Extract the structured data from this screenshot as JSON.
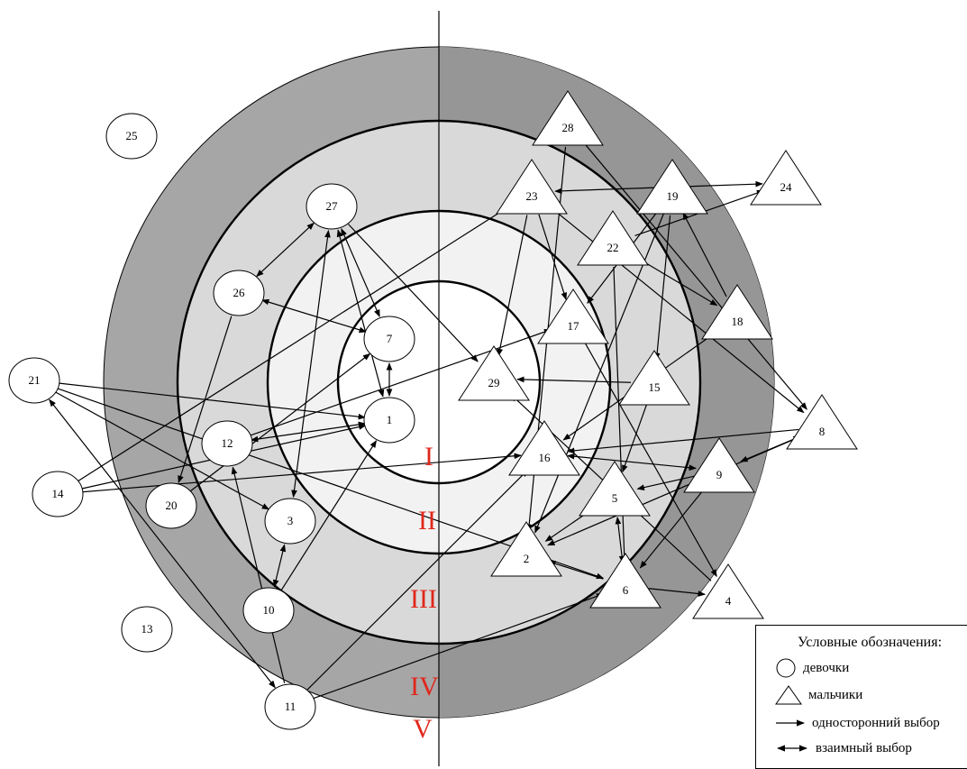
{
  "zones": [
    {
      "id": "I",
      "label": "I"
    },
    {
      "id": "II",
      "label": "II"
    },
    {
      "id": "III",
      "label": "III"
    },
    {
      "id": "IV",
      "label": "IV"
    },
    {
      "id": "V",
      "label": "V"
    }
  ],
  "colors": {
    "zone_outer": "#a6a6a6",
    "zone_outer_right": "#969696",
    "zone_middle": "#d9d9d9",
    "zone_inner": "#f2f2f2",
    "zone_center": "#ffffff",
    "zone_label": "#e0271c",
    "stroke": "#000000"
  },
  "nodes": [
    {
      "id": "1",
      "label": "1",
      "shape": "circle"
    },
    {
      "id": "2",
      "label": "2",
      "shape": "triangle"
    },
    {
      "id": "3",
      "label": "3",
      "shape": "circle"
    },
    {
      "id": "4",
      "label": "4",
      "shape": "triangle"
    },
    {
      "id": "5",
      "label": "5",
      "shape": "triangle"
    },
    {
      "id": "6",
      "label": "6",
      "shape": "triangle"
    },
    {
      "id": "7",
      "label": "7",
      "shape": "circle"
    },
    {
      "id": "8",
      "label": "8",
      "shape": "triangle"
    },
    {
      "id": "9",
      "label": "9",
      "shape": "triangle"
    },
    {
      "id": "10",
      "label": "10",
      "shape": "circle"
    },
    {
      "id": "11",
      "label": "11",
      "shape": "circle"
    },
    {
      "id": "12",
      "label": "12",
      "shape": "circle"
    },
    {
      "id": "13",
      "label": "13",
      "shape": "circle"
    },
    {
      "id": "14",
      "label": "14",
      "shape": "circle"
    },
    {
      "id": "15",
      "label": "15",
      "shape": "triangle"
    },
    {
      "id": "16",
      "label": "16",
      "shape": "triangle"
    },
    {
      "id": "17",
      "label": "17",
      "shape": "triangle"
    },
    {
      "id": "18",
      "label": "18",
      "shape": "triangle"
    },
    {
      "id": "19",
      "label": "19",
      "shape": "triangle"
    },
    {
      "id": "20",
      "label": "20",
      "shape": "circle"
    },
    {
      "id": "21",
      "label": "21",
      "shape": "circle"
    },
    {
      "id": "22",
      "label": "22",
      "shape": "triangle"
    },
    {
      "id": "23",
      "label": "23",
      "shape": "triangle"
    },
    {
      "id": "24",
      "label": "24",
      "shape": "triangle"
    },
    {
      "id": "25",
      "label": "25",
      "shape": "circle"
    },
    {
      "id": "26",
      "label": "26",
      "shape": "circle"
    },
    {
      "id": "27",
      "label": "27",
      "shape": "circle"
    },
    {
      "id": "28",
      "label": "28",
      "shape": "triangle"
    },
    {
      "id": "29",
      "label": "29",
      "shape": "triangle"
    }
  ],
  "edges": [
    {
      "from": "27",
      "to": "7",
      "type": "mutual"
    },
    {
      "from": "27",
      "to": "26",
      "type": "mutual"
    },
    {
      "from": "26",
      "to": "7",
      "type": "mutual"
    },
    {
      "from": "27",
      "to": "1",
      "type": "mutual"
    },
    {
      "from": "7",
      "to": "1",
      "type": "mutual"
    },
    {
      "from": "27",
      "to": "3",
      "type": "mutual"
    },
    {
      "from": "27",
      "to": "29",
      "type": "one-way"
    },
    {
      "from": "26",
      "to": "20",
      "type": "one-way"
    },
    {
      "from": "21",
      "to": "1",
      "type": "one-way"
    },
    {
      "from": "21",
      "to": "3",
      "type": "one-way"
    },
    {
      "from": "21",
      "to": "11",
      "type": "mutual"
    },
    {
      "from": "21",
      "to": "6",
      "type": "one-way"
    },
    {
      "from": "14",
      "to": "1",
      "type": "one-way"
    },
    {
      "from": "14",
      "to": "16",
      "type": "one-way"
    },
    {
      "from": "14",
      "to": "23",
      "type": "one-way"
    },
    {
      "from": "10",
      "to": "3",
      "type": "mutual"
    },
    {
      "from": "10",
      "to": "1",
      "type": "one-way"
    },
    {
      "from": "11",
      "to": "12",
      "type": "one-way"
    },
    {
      "from": "11",
      "to": "6",
      "type": "one-way"
    },
    {
      "from": "11",
      "to": "16",
      "type": "one-way"
    },
    {
      "from": "20",
      "to": "7",
      "type": "one-way"
    },
    {
      "from": "12",
      "to": "17",
      "type": "one-way"
    },
    {
      "from": "12",
      "to": "1",
      "type": "mutual"
    },
    {
      "from": "23",
      "to": "24",
      "type": "mutual"
    },
    {
      "from": "23",
      "to": "29",
      "type": "one-way"
    },
    {
      "from": "23",
      "to": "17",
      "type": "one-way"
    },
    {
      "from": "23",
      "to": "8",
      "type": "one-way"
    },
    {
      "from": "28",
      "to": "2",
      "type": "one-way"
    },
    {
      "from": "28",
      "to": "8",
      "type": "one-way"
    },
    {
      "from": "22",
      "to": "24",
      "type": "one-way"
    },
    {
      "from": "22",
      "to": "18",
      "type": "mutual"
    },
    {
      "from": "22",
      "to": "6",
      "type": "one-way"
    },
    {
      "from": "19",
      "to": "15",
      "type": "one-way"
    },
    {
      "from": "19",
      "to": "17",
      "type": "one-way"
    },
    {
      "from": "19",
      "to": "2",
      "type": "one-way"
    },
    {
      "from": "18",
      "to": "19",
      "type": "one-way"
    },
    {
      "from": "18",
      "to": "16",
      "type": "one-way"
    },
    {
      "from": "17",
      "to": "4",
      "type": "one-way"
    },
    {
      "from": "15",
      "to": "29",
      "type": "one-way"
    },
    {
      "from": "15",
      "to": "5",
      "type": "one-way"
    },
    {
      "from": "8",
      "to": "16",
      "type": "one-way"
    },
    {
      "from": "8",
      "to": "9",
      "type": "mutual"
    },
    {
      "from": "8",
      "to": "2",
      "type": "one-way"
    },
    {
      "from": "9",
      "to": "5",
      "type": "one-way"
    },
    {
      "from": "9",
      "to": "6",
      "type": "one-way"
    },
    {
      "from": "9",
      "to": "16",
      "type": "mutual"
    },
    {
      "from": "4",
      "to": "29",
      "type": "one-way"
    },
    {
      "from": "5",
      "to": "2",
      "type": "mutual"
    },
    {
      "from": "5",
      "to": "6",
      "type": "mutual"
    },
    {
      "from": "6",
      "to": "2",
      "type": "one-way"
    },
    {
      "from": "6",
      "to": "4",
      "type": "one-way"
    }
  ],
  "legend": {
    "title": "Условные обозначения:",
    "girls": "девочки",
    "boys": "мальчики",
    "one_way": "односторонний выбор",
    "mutual": "взаимный выбор"
  }
}
